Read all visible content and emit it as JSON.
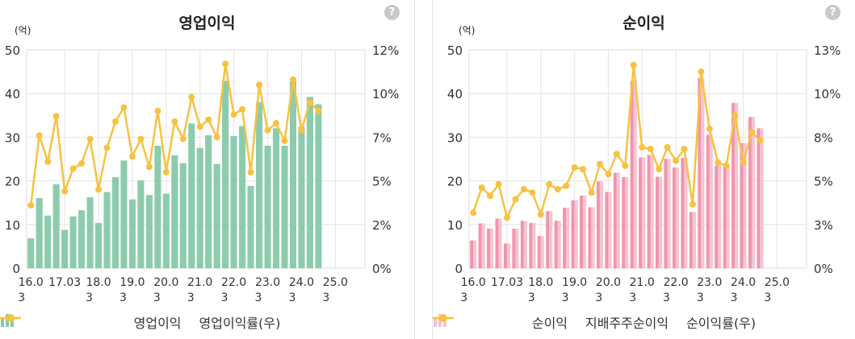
{
  "help_label": "?",
  "chart_data": [
    {
      "type": "bar",
      "title": "영업이익",
      "unit_label": "(억)",
      "x_tick_labels": [
        "16.0\n3",
        "17.03",
        "18.0\n3",
        "19.0\n3",
        "20.0\n3",
        "21.0\n3",
        "22.0\n3",
        "23.0\n3",
        "24.0\n3",
        "25.0\n3"
      ],
      "ylim": [
        0,
        50
      ],
      "y_ticks": [
        "0",
        "10",
        "20",
        "30",
        "40",
        "50"
      ],
      "y2lim": [
        0,
        12.5
      ],
      "y2_ticks": [
        "0%",
        "2%",
        "5%",
        "7%",
        "10%",
        "12%"
      ],
      "grid": true,
      "legend_position": "bottom",
      "series": [
        {
          "name": "영업이익",
          "kind": "bar",
          "color": "#86c9a8",
          "values": [
            6.8,
            16,
            12,
            19.2,
            8.7,
            11.8,
            13.2,
            16.2,
            10.3,
            17.4,
            20.8,
            24.6,
            15.7,
            20.1,
            16.7,
            28,
            17,
            25.8,
            24,
            33.1,
            27.5,
            30.4,
            23.8,
            42.9,
            30.2,
            32.5,
            18.8,
            38,
            28,
            32,
            28,
            42.8,
            32.3,
            39.2,
            37.5
          ]
        },
        {
          "name": "영업이익률(우)",
          "kind": "line",
          "color": "#f7c242",
          "values": [
            3.6,
            7.6,
            6.1,
            8.7,
            4.4,
            5.7,
            6,
            7.4,
            4.5,
            6.9,
            8.4,
            9.2,
            6.4,
            7.4,
            5.8,
            9,
            5.5,
            8.4,
            7.4,
            9.8,
            8.1,
            8.5,
            7.5,
            11.7,
            8.8,
            9.1,
            5.5,
            10.5,
            7.9,
            8.3,
            7.3,
            10.8,
            7.9,
            9.5,
            9
          ]
        }
      ]
    },
    {
      "type": "bar",
      "title": "순이익",
      "unit_label": "(억)",
      "x_tick_labels": [
        "16.0\n3",
        "17.03",
        "18.0\n3",
        "19.0\n3",
        "20.0\n3",
        "21.0\n3",
        "22.0\n3",
        "23.0\n3",
        "24.0\n3",
        "25.0\n3"
      ],
      "ylim": [
        0,
        50
      ],
      "y_ticks": [
        "0",
        "10",
        "20",
        "30",
        "40",
        "50"
      ],
      "y2lim": [
        0,
        13
      ],
      "y2_ticks": [
        "0%",
        "3%",
        "5%",
        "8%",
        "10%",
        "13%"
      ],
      "grid": true,
      "legend_position": "bottom",
      "series": [
        {
          "name": "순이익",
          "kind": "bar",
          "color": "#ef8fa8",
          "values": [
            6.3,
            10.2,
            9,
            11.3,
            5.6,
            9,
            10.8,
            10.3,
            7.3,
            13,
            10.8,
            13.8,
            15.5,
            16.6,
            13.9,
            19.8,
            17.4,
            21.8,
            20.8,
            42.9,
            25.3,
            25.9,
            20.9,
            25,
            23,
            25.2,
            12.8,
            43.5,
            30.5,
            23.5,
            23.2,
            37.8,
            28.6,
            34.6,
            32
          ]
        },
        {
          "name": "지배주주순이익",
          "kind": "bar",
          "color": "#f6c2d2",
          "values": [
            6.3,
            10.2,
            9,
            11.3,
            5.6,
            9,
            10.8,
            10.3,
            7.3,
            13,
            10.8,
            13.8,
            15.5,
            16.6,
            13.9,
            19.8,
            17.4,
            21.8,
            20.8,
            42.9,
            25.3,
            25.9,
            20.9,
            25,
            23,
            25.2,
            12.8,
            43.5,
            30.5,
            23.5,
            23.2,
            37.8,
            28.6,
            34.6,
            32
          ]
        },
        {
          "name": "순이익률(우)",
          "kind": "line",
          "color": "#f7c242",
          "values": [
            3.3,
            4.8,
            4.3,
            5,
            3,
            4.1,
            4.7,
            4.5,
            3.2,
            5,
            4.7,
            4.9,
            6,
            5.9,
            4.5,
            6.2,
            5.6,
            6.8,
            6.1,
            12.1,
            7.2,
            7.1,
            5.9,
            7.2,
            6.4,
            7.1,
            3.8,
            11.7,
            8.3,
            6.3,
            6.1,
            9.1,
            6.3,
            8.1,
            7.6
          ]
        }
      ]
    }
  ]
}
